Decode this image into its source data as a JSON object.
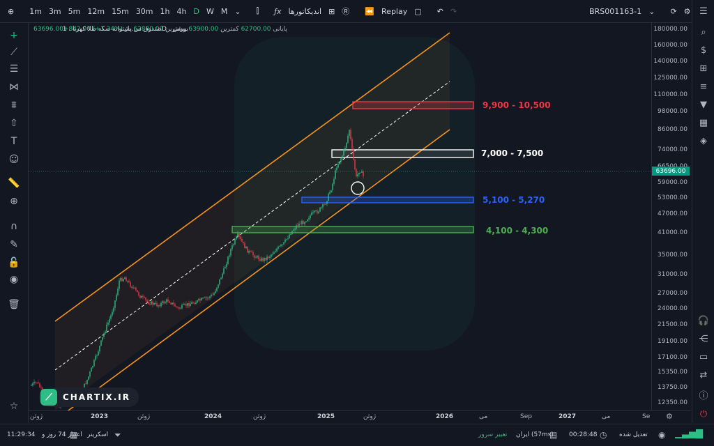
{
  "topbar": {
    "timeframes": [
      "1m",
      "3m",
      "5m",
      "12m",
      "15m",
      "30m",
      "1h",
      "4h",
      "D",
      "W",
      "M"
    ],
    "active_timeframe": "D",
    "indicators_label": "اندیکاتورها",
    "replay_label": "Replay",
    "symbol": "BRS001163-1"
  },
  "legend": {
    "open_label": "باز",
    "open_value": "62800.00",
    "high_label": "بیشترین",
    "high_value": "63900.00",
    "low_label": "کمترین",
    "low_value": "62700.00",
    "close_label": "پایانی",
    "close_value": "63696.00+842.00 (+1.34%)",
    "title": "صندوق س.پشتوانه سکه طلا کهربا . 1D . بورس"
  },
  "zones": [
    {
      "label": "9,900 - 10,500",
      "color": "#f23645"
    },
    {
      "label": "7,000 - 7,500",
      "color": "#ffffff"
    },
    {
      "label": "5,100 - 5,270",
      "color": "#2962ff"
    },
    {
      "label": "4,100 - 4,300",
      "color": "#4caf50"
    }
  ],
  "price_axis": [
    "180000.00",
    "160000.00",
    "140000.00",
    "125000.00",
    "110000.00",
    "98000.00",
    "86000.00",
    "74000.00",
    "66500.00",
    "59000.00",
    "53000.00",
    "47000.00",
    "41000.00",
    "35000.00",
    "31000.00",
    "27000.00",
    "24000.00",
    "21500.00",
    "19100.00",
    "17100.00",
    "15350.00",
    "13750.00",
    "12350.00"
  ],
  "current_price": "63696.00",
  "time_axis": [
    {
      "label": "ژوئن",
      "year": false
    },
    {
      "label": "2023",
      "year": true
    },
    {
      "label": "ژوئن",
      "year": false
    },
    {
      "label": "2024",
      "year": true
    },
    {
      "label": "ژوئن",
      "year": false
    },
    {
      "label": "2025",
      "year": true
    },
    {
      "label": "ژوئن",
      "year": false
    },
    {
      "label": "2026",
      "year": true
    },
    {
      "label": "می",
      "year": false
    },
    {
      "label": "Sep",
      "year": false
    },
    {
      "label": "2027",
      "year": true
    },
    {
      "label": "می",
      "year": false
    },
    {
      "label": "Se",
      "year": false
    }
  ],
  "watermark": {
    "text": "CHARTIX.IR"
  },
  "bottombar": {
    "clock": "11:29:34",
    "credit": "اعتبار 74 روز و",
    "screener": "اسکرینر",
    "server": "تغییر سرور",
    "ping": "ایران (57ms)",
    "time": "00:28:48",
    "adjusted": "تعدیل شده"
  },
  "colors": {
    "up": "#2ebd85",
    "down": "#f23645",
    "channel": "#f7931a"
  }
}
